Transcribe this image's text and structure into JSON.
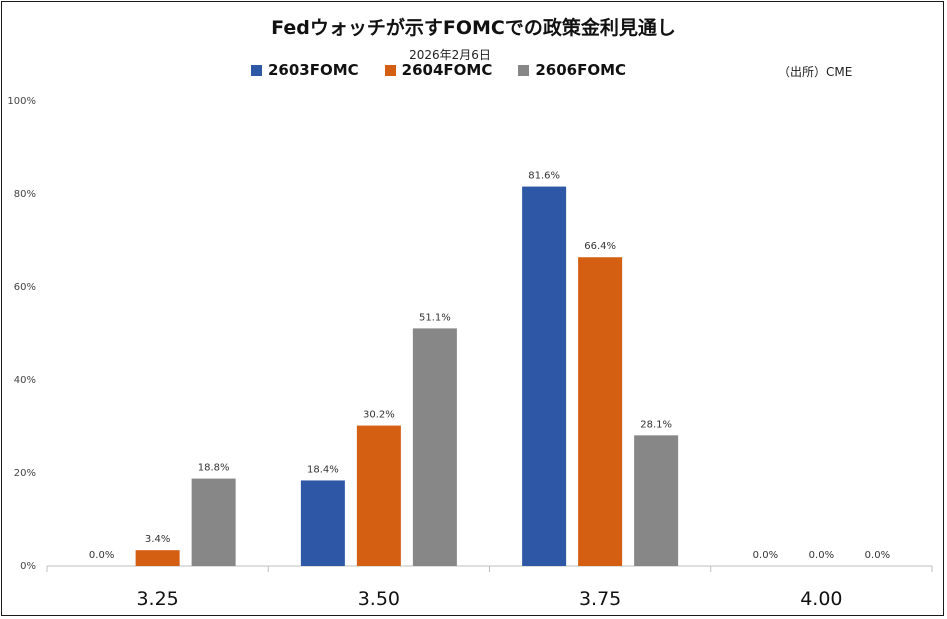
{
  "chart_data": {
    "type": "bar",
    "title": "Fedウォッチが示すFOMCでの政策金利見通し",
    "subtitle": "2026年2月6日",
    "source": "（出所）CME",
    "categories": [
      "3.25",
      "3.50",
      "3.75",
      "4.00"
    ],
    "series": [
      {
        "name": "2603FOMC",
        "color": "#2e58a6",
        "values": [
          0.0,
          18.4,
          81.6,
          0.0
        ],
        "labels": [
          "0.0%",
          "18.4%",
          "81.6%",
          "0.0%"
        ]
      },
      {
        "name": "2604FOMC",
        "color": "#d45f13",
        "values": [
          3.4,
          30.2,
          66.4,
          0.0
        ],
        "labels": [
          "3.4%",
          "30.2%",
          "66.4%",
          "0.0%"
        ]
      },
      {
        "name": "2606FOMC",
        "color": "#878787",
        "values": [
          18.8,
          51.1,
          28.1,
          0.0
        ],
        "labels": [
          "18.8%",
          "51.1%",
          "28.1%",
          "0.0%"
        ]
      }
    ],
    "ylim": [
      0,
      100
    ],
    "yticks": [
      0,
      20,
      40,
      60,
      80,
      100
    ],
    "ytick_labels": [
      "0%",
      "20%",
      "40%",
      "60%",
      "80%",
      "100%"
    ],
    "legend_position": "top",
    "grid": false
  }
}
